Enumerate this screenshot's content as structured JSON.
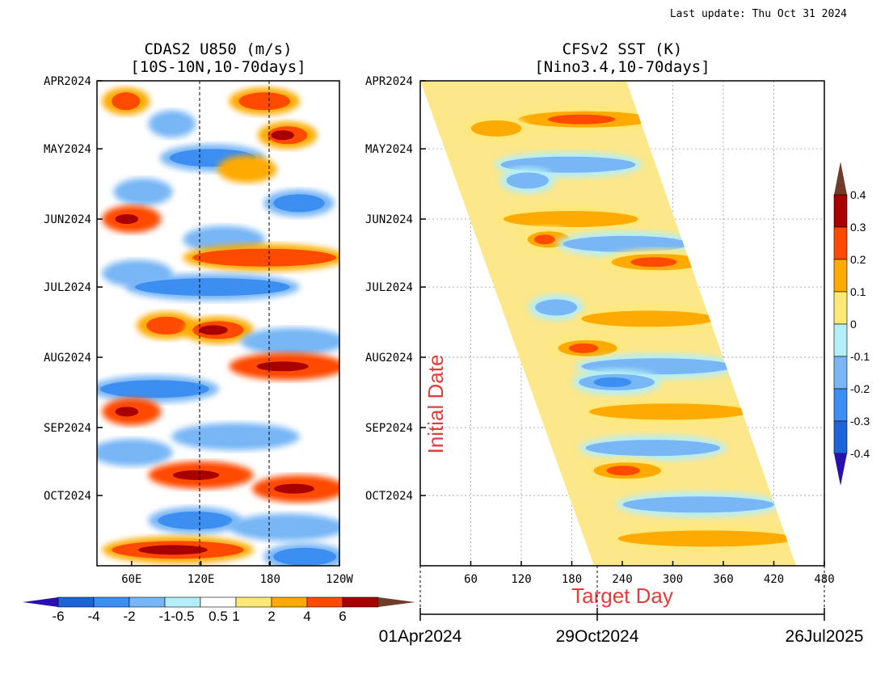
{
  "header": {
    "last_update": "Last update: Thu Oct 31 2024"
  },
  "chart_data": [
    {
      "type": "heatmap",
      "title": "CDAS2 U850 (m/s)",
      "subtitle": "[10S-10N,10-70days]",
      "y_tick_labels": [
        "APR2024",
        "MAY2024",
        "JUN2024",
        "JUL2024",
        "AUG2024",
        "SEP2024",
        "OCT2024"
      ],
      "x_tick_labels": [
        "60E",
        "120E",
        "180",
        "120W"
      ],
      "xlim_deg_east": [
        30,
        240
      ],
      "colorbar": {
        "ticks": [
          "-6",
          "-4",
          "-2",
          "-1",
          "-0.5",
          "0.5",
          "1",
          "2",
          "4",
          "6"
        ],
        "colors": [
          "#2a0fb0",
          "#1e64d8",
          "#3c8ef0",
          "#78b6f5",
          "#b4eef8",
          "#ffffff",
          "#ffe87a",
          "#ffaa00",
          "#ff4a00",
          "#a80000",
          "#6e3c28"
        ]
      },
      "anomaly_bands": [
        {
          "date": "2024-04-10",
          "lon": [
            40,
            70
          ],
          "value": 2
        },
        {
          "date": "2024-04-10",
          "lon": [
            150,
            200
          ],
          "value": 2
        },
        {
          "date": "2024-04-20",
          "lon": [
            80,
            110
          ],
          "value": -1
        },
        {
          "date": "2024-04-25",
          "lon": [
            175,
            215
          ],
          "value": 3
        },
        {
          "date": "2024-05-05",
          "lon": [
            90,
            170
          ],
          "value": -2
        },
        {
          "date": "2024-05-10",
          "lon": [
            140,
            180
          ],
          "value": 1.5
        },
        {
          "date": "2024-05-20",
          "lon": [
            50,
            90
          ],
          "value": -1.5
        },
        {
          "date": "2024-05-25",
          "lon": [
            180,
            230
          ],
          "value": -2
        },
        {
          "date": "2024-06-01",
          "lon": [
            40,
            80
          ],
          "value": 3.5
        },
        {
          "date": "2024-06-10",
          "lon": [
            110,
            170
          ],
          "value": -1
        },
        {
          "date": "2024-06-18",
          "lon": [
            110,
            240
          ],
          "value": 2
        },
        {
          "date": "2024-06-25",
          "lon": [
            40,
            90
          ],
          "value": -1
        },
        {
          "date": "2024-07-01",
          "lon": [
            60,
            200
          ],
          "value": -2
        },
        {
          "date": "2024-07-18",
          "lon": [
            70,
            110
          ],
          "value": 2
        },
        {
          "date": "2024-07-20",
          "lon": [
            110,
            160
          ],
          "value": 3
        },
        {
          "date": "2024-07-25",
          "lon": [
            160,
            240
          ],
          "value": -1.5
        },
        {
          "date": "2024-08-05",
          "lon": [
            150,
            240
          ],
          "value": 3.5
        },
        {
          "date": "2024-08-15",
          "lon": [
            30,
            130
          ],
          "value": -2
        },
        {
          "date": "2024-08-25",
          "lon": [
            40,
            80
          ],
          "value": 3.5
        },
        {
          "date": "2024-09-05",
          "lon": [
            100,
            200
          ],
          "value": -1.5
        },
        {
          "date": "2024-09-12",
          "lon": [
            30,
            90
          ],
          "value": -1
        },
        {
          "date": "2024-09-22",
          "lon": [
            80,
            160
          ],
          "value": 3.5
        },
        {
          "date": "2024-09-28",
          "lon": [
            170,
            240
          ],
          "value": 3.5
        },
        {
          "date": "2024-10-12",
          "lon": [
            80,
            150
          ],
          "value": -2.5
        },
        {
          "date": "2024-10-15",
          "lon": [
            150,
            240
          ],
          "value": -1.5
        },
        {
          "date": "2024-10-25",
          "lon": [
            40,
            160
          ],
          "value": 3
        },
        {
          "date": "2024-10-28",
          "lon": [
            180,
            240
          ],
          "value": -2
        }
      ]
    },
    {
      "type": "heatmap",
      "title": "CFSv2 SST (K)",
      "subtitle": "[Nino3.4,10-70days]",
      "y_tick_labels": [
        "APR2024",
        "MAY2024",
        "JUN2024",
        "JUL2024",
        "AUG2024",
        "SEP2024",
        "OCT2024"
      ],
      "x_tick_labels": [
        "60",
        "120",
        "180",
        "240",
        "300",
        "360",
        "420",
        "480"
      ],
      "xlim_days": [
        0,
        480
      ],
      "xlabel": "Target Day",
      "ylabel": "Initial Date",
      "bottom_axis_labels": [
        "01Apr2024",
        "29Oct2024",
        "26Jul2025"
      ],
      "forecast_window_days": [
        0,
        250
      ],
      "colorbar": {
        "ticks": [
          "0.4",
          "0.3",
          "0.2",
          "0.1",
          "0",
          "-0.1",
          "-0.2",
          "-0.3",
          "-0.4"
        ],
        "colors": [
          "#6e3c28",
          "#a80000",
          "#ff4a00",
          "#ffaa00",
          "#ffe87a",
          "#b4eef8",
          "#78b6f5",
          "#3c8ef0",
          "#1e64d8",
          "#2a0fb0"
        ]
      },
      "anomaly_bands": [
        {
          "date": "2024-04-18",
          "day": [
            100,
            260
          ],
          "value": 0.25
        },
        {
          "date": "2024-04-22",
          "day": [
            40,
            100
          ],
          "value": 0.15
        },
        {
          "date": "2024-05-08",
          "day": [
            60,
            220
          ],
          "value": -0.12
        },
        {
          "date": "2024-05-15",
          "day": [
            60,
            110
          ],
          "value": -0.18
        },
        {
          "date": "2024-06-01",
          "day": [
            40,
            200
          ],
          "value": 0.12
        },
        {
          "date": "2024-06-10",
          "day": [
            60,
            110
          ],
          "value": 0.2
        },
        {
          "date": "2024-06-12",
          "day": [
            100,
            250
          ],
          "value": -0.15
        },
        {
          "date": "2024-06-20",
          "day": [
            150,
            260
          ],
          "value": 0.22
        },
        {
          "date": "2024-07-10",
          "day": [
            40,
            90
          ],
          "value": -0.18
        },
        {
          "date": "2024-07-15",
          "day": [
            90,
            250
          ],
          "value": 0.12
        },
        {
          "date": "2024-07-28",
          "day": [
            50,
            120
          ],
          "value": 0.28
        },
        {
          "date": "2024-08-05",
          "day": [
            70,
            250
          ],
          "value": -0.12
        },
        {
          "date": "2024-08-12",
          "day": [
            60,
            150
          ],
          "value": -0.22
        },
        {
          "date": "2024-08-25",
          "day": [
            60,
            250
          ],
          "value": 0.15
        },
        {
          "date": "2024-09-10",
          "day": [
            40,
            200
          ],
          "value": -0.1
        },
        {
          "date": "2024-09-20",
          "day": [
            40,
            120
          ],
          "value": 0.25
        },
        {
          "date": "2024-10-05",
          "day": [
            60,
            240
          ],
          "value": -0.1
        },
        {
          "date": "2024-10-20",
          "day": [
            40,
            250
          ],
          "value": 0.12
        }
      ]
    }
  ],
  "colors": {
    "text_red": "#e83a3a",
    "grid": "#999999"
  }
}
